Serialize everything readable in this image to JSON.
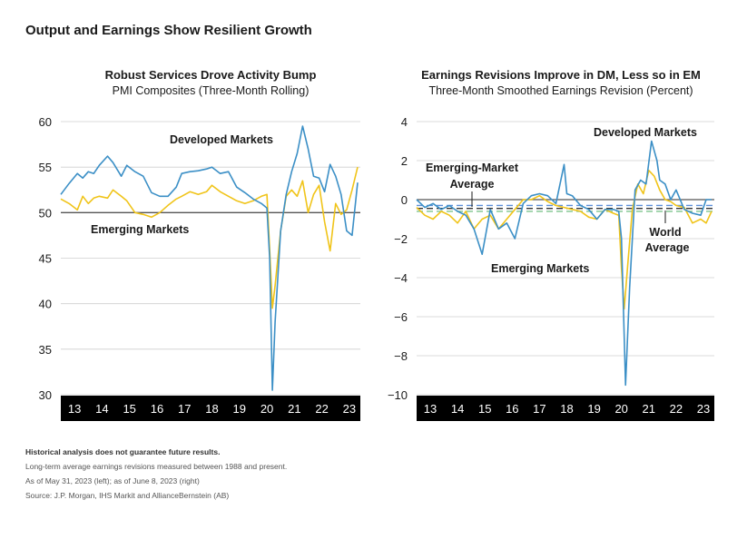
{
  "main_title": "Output and Earnings Show Resilient Growth",
  "footnotes": {
    "disclaimer": "Historical analysis does not guarantee future results.",
    "note1": "Long-term average earnings revisions measured between 1988 and present.",
    "note2": "As of May 31, 2023 (left); as of June 8, 2023 (right)",
    "source": "Source: J.P. Morgan, IHS Markit and AllianceBernstein (AB)"
  },
  "colors": {
    "developed": "#3b8fc6",
    "emerging": "#f0c419",
    "axis_band": "#000000",
    "dev_avg": "#5b8fd9",
    "em_avg": "#7cc48c"
  },
  "chart_data": [
    {
      "type": "line",
      "title": "Robust Services Drove Activity Bump",
      "subtitle": "PMI Composites (Three-Month Rolling)",
      "ylim": [
        30,
        60
      ],
      "yticks": [
        "30",
        "35",
        "40",
        "45",
        "50",
        "55",
        "60"
      ],
      "xlim": [
        2012.6,
        2023.5
      ],
      "xtick_labels": [
        "13",
        "14",
        "15",
        "16",
        "17",
        "18",
        "19",
        "20",
        "21",
        "22",
        "23"
      ],
      "reference_line": 50,
      "annotations": [
        {
          "text": "Developed Markets",
          "series": "Developed Markets"
        },
        {
          "text": "Emerging Markets",
          "series": "Emerging Markets"
        }
      ],
      "series": [
        {
          "name": "Developed Markets",
          "x": [
            2012.6,
            2012.9,
            2013.2,
            2013.4,
            2013.6,
            2013.8,
            2014.0,
            2014.3,
            2014.5,
            2014.8,
            2015.0,
            2015.3,
            2015.6,
            2015.9,
            2016.2,
            2016.5,
            2016.8,
            2017.0,
            2017.3,
            2017.6,
            2017.9,
            2018.1,
            2018.4,
            2018.7,
            2019.0,
            2019.3,
            2019.6,
            2019.9,
            2020.1,
            2020.2,
            2020.3,
            2020.4,
            2020.6,
            2020.8,
            2021.0,
            2021.2,
            2021.4,
            2021.6,
            2021.8,
            2022.0,
            2022.2,
            2022.4,
            2022.6,
            2022.8,
            2023.0,
            2023.2,
            2023.4
          ],
          "y": [
            52.0,
            53.2,
            54.3,
            53.8,
            54.5,
            54.3,
            55.2,
            56.2,
            55.5,
            54.0,
            55.2,
            54.5,
            54.0,
            52.2,
            51.8,
            51.8,
            52.8,
            54.3,
            54.5,
            54.6,
            54.8,
            55.0,
            54.3,
            54.5,
            52.8,
            52.2,
            51.5,
            51.0,
            50.5,
            45.0,
            30.5,
            38.0,
            48.0,
            52.0,
            54.5,
            56.5,
            59.5,
            57.0,
            54.0,
            53.8,
            52.3,
            55.3,
            54.0,
            52.0,
            48.0,
            47.5,
            53.3
          ]
        },
        {
          "name": "Emerging Markets",
          "x": [
            2012.6,
            2012.9,
            2013.2,
            2013.4,
            2013.6,
            2013.8,
            2014.0,
            2014.3,
            2014.5,
            2014.8,
            2015.0,
            2015.3,
            2015.6,
            2015.9,
            2016.2,
            2016.5,
            2016.8,
            2017.0,
            2017.3,
            2017.6,
            2017.9,
            2018.1,
            2018.4,
            2018.7,
            2019.0,
            2019.3,
            2019.6,
            2019.9,
            2020.1,
            2020.2,
            2020.3,
            2020.4,
            2020.6,
            2020.8,
            2021.0,
            2021.2,
            2021.4,
            2021.6,
            2021.8,
            2022.0,
            2022.2,
            2022.4,
            2022.6,
            2022.8,
            2023.0,
            2023.2,
            2023.4
          ],
          "y": [
            51.5,
            51.0,
            50.3,
            51.8,
            51.0,
            51.6,
            51.8,
            51.6,
            52.5,
            51.8,
            51.3,
            50.0,
            49.8,
            49.5,
            50.0,
            50.8,
            51.5,
            51.8,
            52.3,
            52.0,
            52.3,
            53.0,
            52.3,
            51.8,
            51.3,
            51.0,
            51.3,
            51.8,
            52.0,
            46.0,
            39.5,
            42.0,
            48.0,
            51.8,
            52.5,
            51.8,
            53.5,
            50.0,
            52.0,
            53.0,
            49.0,
            45.8,
            51.0,
            49.8,
            50.3,
            52.5,
            55.0
          ]
        }
      ]
    },
    {
      "type": "line",
      "title": "Earnings Revisions Improve in DM, Less so in EM",
      "subtitle": "Three-Month Smoothed Earnings Revision (Percent)",
      "ylim": [
        -10,
        4
      ],
      "yticks": [
        "4",
        "2",
        "0",
        "−2",
        "−4",
        "−6",
        "−8",
        "−10"
      ],
      "xlim": [
        2012.6,
        2023.5
      ],
      "xtick_labels": [
        "13",
        "14",
        "15",
        "16",
        "17",
        "18",
        "19",
        "20",
        "21",
        "22",
        "23"
      ],
      "reference_line": 0,
      "averages": [
        {
          "name": "Developed Markets Average",
          "value": -0.3
        },
        {
          "name": "World Average",
          "value": -0.45
        },
        {
          "name": "Emerging-Market Average",
          "value": -0.6
        }
      ],
      "annotations": [
        {
          "text": "Developed Markets",
          "series": "Developed Markets"
        },
        {
          "text": "Emerging Markets",
          "series": "Emerging Markets"
        },
        {
          "text": "Emerging-Market",
          "series": "Emerging-Market Average"
        },
        {
          "text": "Average",
          "series": "Emerging-Market Average"
        },
        {
          "text": "World",
          "series": "World Average"
        },
        {
          "text": "Average",
          "series": "World Average"
        }
      ],
      "series": [
        {
          "name": "Developed Markets",
          "x": [
            2012.6,
            2012.9,
            2013.2,
            2013.5,
            2013.8,
            2014.1,
            2014.4,
            2014.7,
            2015.0,
            2015.3,
            2015.6,
            2015.9,
            2016.2,
            2016.5,
            2016.8,
            2017.1,
            2017.4,
            2017.7,
            2018.0,
            2018.1,
            2018.3,
            2018.6,
            2018.9,
            2019.2,
            2019.5,
            2019.8,
            2020.0,
            2020.1,
            2020.25,
            2020.4,
            2020.6,
            2020.8,
            2021.0,
            2021.2,
            2021.4,
            2021.5,
            2021.7,
            2021.9,
            2022.1,
            2022.4,
            2022.7,
            2023.0,
            2023.2,
            2023.4
          ],
          "y": [
            0.0,
            -0.4,
            -0.2,
            -0.5,
            -0.3,
            -0.6,
            -0.8,
            -1.5,
            -2.8,
            -0.5,
            -1.5,
            -1.2,
            -2.0,
            -0.2,
            0.2,
            0.3,
            0.2,
            -0.2,
            1.8,
            0.3,
            0.2,
            -0.3,
            -0.5,
            -1.0,
            -0.5,
            -0.5,
            -0.6,
            -2.0,
            -9.5,
            -4.5,
            0.5,
            1.0,
            0.8,
            3.0,
            2.0,
            1.0,
            0.8,
            0.0,
            0.5,
            -0.5,
            -0.7,
            -0.8,
            0.0,
            0.0
          ]
        },
        {
          "name": "Emerging Markets",
          "x": [
            2012.6,
            2012.9,
            2013.2,
            2013.5,
            2013.8,
            2014.1,
            2014.4,
            2014.7,
            2015.0,
            2015.3,
            2015.6,
            2015.9,
            2016.2,
            2016.5,
            2016.8,
            2017.1,
            2017.4,
            2017.7,
            2018.0,
            2018.3,
            2018.6,
            2018.9,
            2019.2,
            2019.5,
            2019.8,
            2020.0,
            2020.1,
            2020.2,
            2020.35,
            2020.5,
            2020.7,
            2020.9,
            2021.1,
            2021.3,
            2021.5,
            2021.7,
            2021.9,
            2022.1,
            2022.4,
            2022.7,
            2023.0,
            2023.2,
            2023.4
          ],
          "y": [
            -0.4,
            -0.8,
            -1.0,
            -0.6,
            -0.8,
            -1.2,
            -0.6,
            -1.5,
            -1.0,
            -0.8,
            -1.5,
            -1.0,
            -0.5,
            0.0,
            0.0,
            0.2,
            -0.1,
            -0.3,
            -0.4,
            -0.5,
            -0.6,
            -0.9,
            -1.0,
            -0.5,
            -0.7,
            -0.8,
            -3.5,
            -5.6,
            -3.0,
            -0.5,
            0.8,
            0.3,
            1.5,
            1.2,
            0.5,
            0.0,
            -0.1,
            -0.3,
            -0.4,
            -1.2,
            -1.0,
            -1.2,
            -0.6
          ]
        }
      ]
    }
  ]
}
